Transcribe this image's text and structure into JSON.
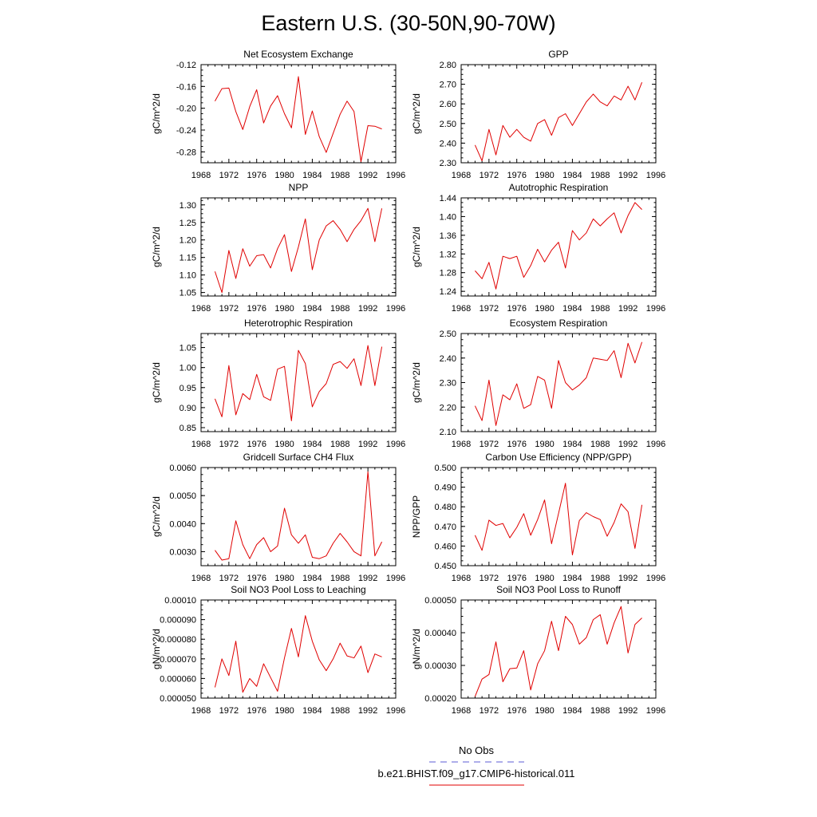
{
  "title": "Eastern U.S. (30-50N,90-70W)",
  "legend": {
    "obs_label": "No Obs",
    "obs_color": "#5b5bd6",
    "model_label": "b.e21.BHIST.f09_g17.CMIP6-historical.011",
    "model_color": "#e00000"
  },
  "chart_data": [
    {
      "type": "line",
      "title": "Net Ecosystem Exchange",
      "ylabel": "gC/m^2/d",
      "xlim": [
        1968,
        1996
      ],
      "xticks": [
        1968,
        1972,
        1976,
        1980,
        1984,
        1988,
        1992,
        1996
      ],
      "ylim": [
        -0.3,
        -0.12
      ],
      "yticks": [
        -0.28,
        -0.24,
        -0.2,
        -0.16,
        -0.12
      ],
      "ytick_labels": [
        "-0.28",
        "-0.24",
        "-0.20",
        "-0.16",
        "-0.12"
      ],
      "ytick_minor": 0.01,
      "x": [
        1970,
        1971,
        1972,
        1973,
        1974,
        1975,
        1976,
        1977,
        1978,
        1979,
        1980,
        1981,
        1982,
        1983,
        1984,
        1985,
        1986,
        1987,
        1988,
        1989,
        1990,
        1991,
        1992,
        1993,
        1994
      ],
      "series": [
        {
          "values": [
            -0.187,
            -0.164,
            -0.163,
            -0.206,
            -0.239,
            -0.197,
            -0.166,
            -0.227,
            -0.196,
            -0.177,
            -0.21,
            -0.236,
            -0.142,
            -0.248,
            -0.205,
            -0.252,
            -0.281,
            -0.246,
            -0.211,
            -0.187,
            -0.206,
            -0.298,
            -0.232,
            -0.233,
            -0.238
          ]
        }
      ]
    },
    {
      "type": "line",
      "title": "GPP",
      "ylabel": "gC/m^2/d",
      "xlim": [
        1968,
        1996
      ],
      "xticks": [
        1968,
        1972,
        1976,
        1980,
        1984,
        1988,
        1992,
        1996
      ],
      "ylim": [
        2.3,
        2.8
      ],
      "yticks": [
        2.3,
        2.4,
        2.5,
        2.6,
        2.7,
        2.8
      ],
      "ytick_labels": [
        "2.30",
        "2.40",
        "2.50",
        "2.60",
        "2.70",
        "2.80"
      ],
      "ytick_minor": 0.025,
      "x": [
        1970,
        1971,
        1972,
        1973,
        1974,
        1975,
        1976,
        1977,
        1978,
        1979,
        1980,
        1981,
        1982,
        1983,
        1984,
        1985,
        1986,
        1987,
        1988,
        1989,
        1990,
        1991,
        1992,
        1993,
        1994
      ],
      "series": [
        {
          "values": [
            2.39,
            2.31,
            2.47,
            2.34,
            2.49,
            2.43,
            2.47,
            2.43,
            2.41,
            2.5,
            2.52,
            2.44,
            2.53,
            2.55,
            2.49,
            2.55,
            2.61,
            2.65,
            2.61,
            2.59,
            2.64,
            2.62,
            2.69,
            2.62,
            2.71
          ]
        }
      ]
    },
    {
      "type": "line",
      "title": "NPP",
      "ylabel": "gC/m^2/d",
      "xlim": [
        1968,
        1996
      ],
      "xticks": [
        1968,
        1972,
        1976,
        1980,
        1984,
        1988,
        1992,
        1996
      ],
      "ylim": [
        1.04,
        1.32
      ],
      "yticks": [
        1.05,
        1.1,
        1.15,
        1.2,
        1.25,
        1.3
      ],
      "ytick_labels": [
        "1.05",
        "1.10",
        "1.15",
        "1.20",
        "1.25",
        "1.30"
      ],
      "ytick_minor": 0.0125,
      "x": [
        1970,
        1971,
        1972,
        1973,
        1974,
        1975,
        1976,
        1977,
        1978,
        1979,
        1980,
        1981,
        1982,
        1983,
        1984,
        1985,
        1986,
        1987,
        1988,
        1989,
        1990,
        1991,
        1992,
        1993,
        1994
      ],
      "series": [
        {
          "values": [
            1.11,
            1.05,
            1.17,
            1.09,
            1.175,
            1.125,
            1.155,
            1.158,
            1.12,
            1.175,
            1.215,
            1.11,
            1.18,
            1.26,
            1.115,
            1.2,
            1.24,
            1.255,
            1.23,
            1.195,
            1.23,
            1.255,
            1.29,
            1.195,
            1.29
          ]
        }
      ]
    },
    {
      "type": "line",
      "title": "Autotrophic Respiration",
      "ylabel": "gC/m^2/d",
      "xlim": [
        1968,
        1996
      ],
      "xticks": [
        1968,
        1972,
        1976,
        1980,
        1984,
        1988,
        1992,
        1996
      ],
      "ylim": [
        1.23,
        1.44
      ],
      "yticks": [
        1.24,
        1.28,
        1.32,
        1.36,
        1.4,
        1.44
      ],
      "ytick_labels": [
        "1.24",
        "1.28",
        "1.32",
        "1.36",
        "1.40",
        "1.44"
      ],
      "ytick_minor": 0.01,
      "x": [
        1970,
        1971,
        1972,
        1973,
        1974,
        1975,
        1976,
        1977,
        1978,
        1979,
        1980,
        1981,
        1982,
        1983,
        1984,
        1985,
        1986,
        1987,
        1988,
        1989,
        1990,
        1991,
        1992,
        1993,
        1994
      ],
      "series": [
        {
          "values": [
            1.284,
            1.267,
            1.302,
            1.245,
            1.315,
            1.31,
            1.315,
            1.27,
            1.295,
            1.33,
            1.303,
            1.328,
            1.345,
            1.29,
            1.37,
            1.35,
            1.365,
            1.395,
            1.38,
            1.395,
            1.408,
            1.365,
            1.402,
            1.43,
            1.415
          ]
        }
      ]
    },
    {
      "type": "line",
      "title": "Heterotrophic Respiration",
      "ylabel": "gC/m^2/d",
      "xlim": [
        1968,
        1996
      ],
      "xticks": [
        1968,
        1972,
        1976,
        1980,
        1984,
        1988,
        1992,
        1996
      ],
      "ylim": [
        0.84,
        1.085
      ],
      "yticks": [
        0.85,
        0.9,
        0.95,
        1.0,
        1.05
      ],
      "ytick_labels": [
        "0.85",
        "0.90",
        "0.95",
        "1.00",
        "1.05"
      ],
      "ytick_minor": 0.0125,
      "x": [
        1970,
        1971,
        1972,
        1973,
        1974,
        1975,
        1976,
        1977,
        1978,
        1979,
        1980,
        1981,
        1982,
        1983,
        1984,
        1985,
        1986,
        1987,
        1988,
        1989,
        1990,
        1991,
        1992,
        1993,
        1994
      ],
      "series": [
        {
          "values": [
            0.922,
            0.877,
            1.005,
            0.882,
            0.935,
            0.92,
            0.983,
            0.927,
            0.918,
            0.996,
            1.003,
            0.867,
            1.043,
            1.01,
            0.902,
            0.94,
            0.96,
            1.008,
            1.015,
            0.998,
            1.022,
            0.955,
            1.055,
            0.955,
            1.052
          ]
        }
      ]
    },
    {
      "type": "line",
      "title": "Ecosystem Respiration",
      "ylabel": "gC/m^2/d",
      "xlim": [
        1968,
        1996
      ],
      "xticks": [
        1968,
        1972,
        1976,
        1980,
        1984,
        1988,
        1992,
        1996
      ],
      "ylim": [
        2.1,
        2.5
      ],
      "yticks": [
        2.1,
        2.2,
        2.3,
        2.4,
        2.5
      ],
      "ytick_labels": [
        "2.10",
        "2.20",
        "2.30",
        "2.40",
        "2.50"
      ],
      "ytick_minor": 0.025,
      "x": [
        1970,
        1971,
        1972,
        1973,
        1974,
        1975,
        1976,
        1977,
        1978,
        1979,
        1980,
        1981,
        1982,
        1983,
        1984,
        1985,
        1986,
        1987,
        1988,
        1989,
        1990,
        1991,
        1992,
        1993,
        1994
      ],
      "series": [
        {
          "values": [
            2.205,
            2.145,
            2.31,
            2.125,
            2.25,
            2.23,
            2.295,
            2.195,
            2.21,
            2.325,
            2.31,
            2.195,
            2.39,
            2.3,
            2.27,
            2.29,
            2.32,
            2.4,
            2.395,
            2.39,
            2.43,
            2.32,
            2.46,
            2.38,
            2.465
          ]
        }
      ]
    },
    {
      "type": "line",
      "title": "Gridcell Surface CH4 Flux",
      "ylabel": "gC/m^2/d",
      "xlim": [
        1968,
        1996
      ],
      "xticks": [
        1968,
        1972,
        1976,
        1980,
        1984,
        1988,
        1992,
        1996
      ],
      "ylim": [
        0.0025,
        0.006
      ],
      "yticks": [
        0.003,
        0.004,
        0.005,
        0.006
      ],
      "ytick_labels": [
        "0.0030",
        "0.0040",
        "0.0050",
        "0.0060"
      ],
      "ytick_minor": 0.00025,
      "x": [
        1970,
        1971,
        1972,
        1973,
        1974,
        1975,
        1976,
        1977,
        1978,
        1979,
        1980,
        1981,
        1982,
        1983,
        1984,
        1985,
        1986,
        1987,
        1988,
        1989,
        1990,
        1991,
        1992,
        1993,
        1994
      ],
      "series": [
        {
          "values": [
            0.00305,
            0.0027,
            0.00275,
            0.0041,
            0.00325,
            0.00275,
            0.00325,
            0.0035,
            0.003,
            0.0032,
            0.00455,
            0.0036,
            0.0033,
            0.0036,
            0.0028,
            0.00275,
            0.00285,
            0.0033,
            0.00365,
            0.00335,
            0.003,
            0.00285,
            0.00585,
            0.00285,
            0.00335
          ]
        }
      ]
    },
    {
      "type": "line",
      "title": "Carbon Use Efficiency (NPP/GPP)",
      "ylabel": "NPP/GPP",
      "xlim": [
        1968,
        1996
      ],
      "xticks": [
        1968,
        1972,
        1976,
        1980,
        1984,
        1988,
        1992,
        1996
      ],
      "ylim": [
        0.45,
        0.5
      ],
      "yticks": [
        0.45,
        0.46,
        0.47,
        0.48,
        0.49,
        0.5
      ],
      "ytick_labels": [
        "0.450",
        "0.460",
        "0.470",
        "0.480",
        "0.490",
        "0.500"
      ],
      "ytick_minor": 0.0025,
      "x": [
        1970,
        1971,
        1972,
        1973,
        1974,
        1975,
        1976,
        1977,
        1978,
        1979,
        1980,
        1981,
        1982,
        1983,
        1984,
        1985,
        1986,
        1987,
        1988,
        1989,
        1990,
        1991,
        1992,
        1993,
        1994
      ],
      "series": [
        {
          "values": [
            0.4655,
            0.4578,
            0.4732,
            0.4705,
            0.4715,
            0.4642,
            0.4695,
            0.4765,
            0.4655,
            0.4735,
            0.4835,
            0.4612,
            0.4765,
            0.492,
            0.4555,
            0.473,
            0.477,
            0.475,
            0.4735,
            0.465,
            0.472,
            0.4815,
            0.4775,
            0.4588,
            0.481
          ]
        }
      ]
    },
    {
      "type": "line",
      "title": "Soil NO3 Pool Loss to Leaching",
      "ylabel": "gN/m^2/d",
      "xlim": [
        1968,
        1996
      ],
      "xticks": [
        1968,
        1972,
        1976,
        1980,
        1984,
        1988,
        1992,
        1996
      ],
      "ylim": [
        5e-05,
        0.0001
      ],
      "yticks": [
        5e-05,
        6e-05,
        7e-05,
        8e-05,
        9e-05,
        0.0001
      ],
      "ytick_labels": [
        "0.000050",
        "0.000060",
        "0.000070",
        "0.000080",
        "0.000090",
        "0.00010"
      ],
      "ytick_minor": 2.5e-06,
      "x": [
        1970,
        1971,
        1972,
        1973,
        1974,
        1975,
        1976,
        1977,
        1978,
        1979,
        1980,
        1981,
        1982,
        1983,
        1984,
        1985,
        1986,
        1987,
        1988,
        1989,
        1990,
        1991,
        1992,
        1993,
        1994
      ],
      "series": [
        {
          "values": [
            5.55e-05,
            7e-05,
            6.15e-05,
            7.9e-05,
            5.3e-05,
            6e-05,
            5.6e-05,
            6.75e-05,
            6.05e-05,
            5.35e-05,
            7.05e-05,
            8.55e-05,
            7.1e-05,
            9.2e-05,
            7.9e-05,
            6.95e-05,
            6.4e-05,
            7e-05,
            7.8e-05,
            7.15e-05,
            7.05e-05,
            7.65e-05,
            6.3e-05,
            7.25e-05,
            7.1e-05
          ]
        }
      ]
    },
    {
      "type": "line",
      "title": "Soil NO3 Pool Loss to Runoff",
      "ylabel": "gN/m^2/d",
      "xlim": [
        1968,
        1996
      ],
      "xticks": [
        1968,
        1972,
        1976,
        1980,
        1984,
        1988,
        1992,
        1996
      ],
      "ylim": [
        0.0002,
        0.0005
      ],
      "yticks": [
        0.0002,
        0.0003,
        0.0004,
        0.0005
      ],
      "ytick_labels": [
        "0.00020",
        "0.00030",
        "0.00040",
        "0.00050"
      ],
      "ytick_minor": 2.5e-05,
      "x": [
        1970,
        1971,
        1972,
        1973,
        1974,
        1975,
        1976,
        1977,
        1978,
        1979,
        1980,
        1981,
        1982,
        1983,
        1984,
        1985,
        1986,
        1987,
        1988,
        1989,
        1990,
        1991,
        1992,
        1993,
        1994
      ],
      "series": [
        {
          "values": [
            0.000205,
            0.000258,
            0.000272,
            0.000372,
            0.00025,
            0.00029,
            0.000292,
            0.000345,
            0.000225,
            0.000305,
            0.000345,
            0.000435,
            0.000345,
            0.00045,
            0.000425,
            0.000365,
            0.000385,
            0.00044,
            0.000455,
            0.000365,
            0.00043,
            0.00048,
            0.000338,
            0.000425,
            0.000445
          ]
        }
      ]
    }
  ]
}
